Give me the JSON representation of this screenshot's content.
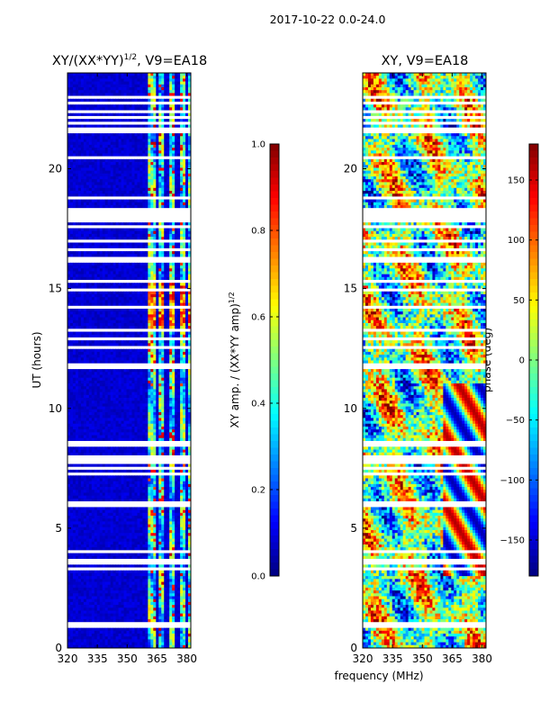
{
  "figure": {
    "suptitle": "2017-10-22 0.0-24.0",
    "xlabel": "frequency (MHz)"
  },
  "chart_data": [
    {
      "type": "heatmap",
      "title_prefix": "XY/(XX*YY)",
      "title_exp": "1/2",
      "title_suffix": ", V9=EA18",
      "xlabel": "",
      "ylabel": "UT (hours)",
      "xlim": [
        320,
        382
      ],
      "ylim": [
        0,
        24
      ],
      "xticks": [
        320,
        335,
        350,
        365,
        380
      ],
      "yticks": [
        0,
        5,
        10,
        15,
        20
      ],
      "colorbar": {
        "label_prefix": "XY amp. / (XX*YY amp)",
        "label_exp": "1/2",
        "range": [
          0.0,
          1.0
        ],
        "ticks": [
          "0.0",
          "0.2",
          "0.4",
          "0.6",
          "0.8",
          "1.0"
        ],
        "tick_values": [
          0.0,
          0.2,
          0.4,
          0.6,
          0.8,
          1.0
        ],
        "colormap": "jet"
      },
      "bright_channel_bands_mhz": [
        [
          361,
          364
        ],
        [
          366,
          369
        ],
        [
          371,
          374
        ],
        [
          376,
          379
        ],
        [
          380,
          382
        ]
      ],
      "high_amplitude_ut_hours": [
        13.3,
        15.3
      ],
      "flagged_ut_hours": [
        0.95,
        1.05,
        3.3,
        3.5,
        3.65,
        4.0,
        5.9,
        6.05,
        7.3,
        7.5,
        7.8,
        8.0,
        8.45,
        8.6,
        11.7,
        11.8,
        12.5,
        12.9,
        13.3,
        14.2,
        14.9,
        15.3,
        16.2,
        16.6,
        17.0,
        17.6,
        18.0,
        18.3,
        18.8,
        20.5,
        21.6,
        21.9,
        22.1,
        22.4,
        22.7,
        23.0
      ]
    },
    {
      "type": "heatmap",
      "title": "XY, V9=EA18",
      "xlabel": "",
      "ylabel": "",
      "xlim": [
        320,
        382
      ],
      "ylim": [
        0,
        24
      ],
      "xticks": [
        320,
        335,
        350,
        365,
        380
      ],
      "yticks": [
        0,
        5,
        10,
        15,
        20
      ],
      "colorbar": {
        "label": "phase (deg)",
        "range": [
          -180,
          180
        ],
        "ticks": [
          "150",
          "100",
          "50",
          "0",
          "−50",
          "−100",
          "−150"
        ],
        "tick_values": [
          150,
          100,
          50,
          0,
          -50,
          -100,
          -150
        ],
        "colormap": "jet"
      },
      "flagged_ut_hours": [
        0.95,
        1.05,
        3.3,
        3.5,
        3.65,
        4.0,
        5.9,
        6.05,
        7.3,
        7.5,
        7.8,
        8.0,
        8.45,
        8.6,
        11.7,
        11.8,
        12.5,
        12.9,
        13.3,
        14.2,
        14.9,
        15.3,
        16.2,
        16.6,
        17.0,
        17.6,
        18.0,
        18.3,
        18.8,
        20.5,
        21.6,
        21.9,
        22.1,
        22.4,
        22.7,
        23.0
      ]
    }
  ]
}
